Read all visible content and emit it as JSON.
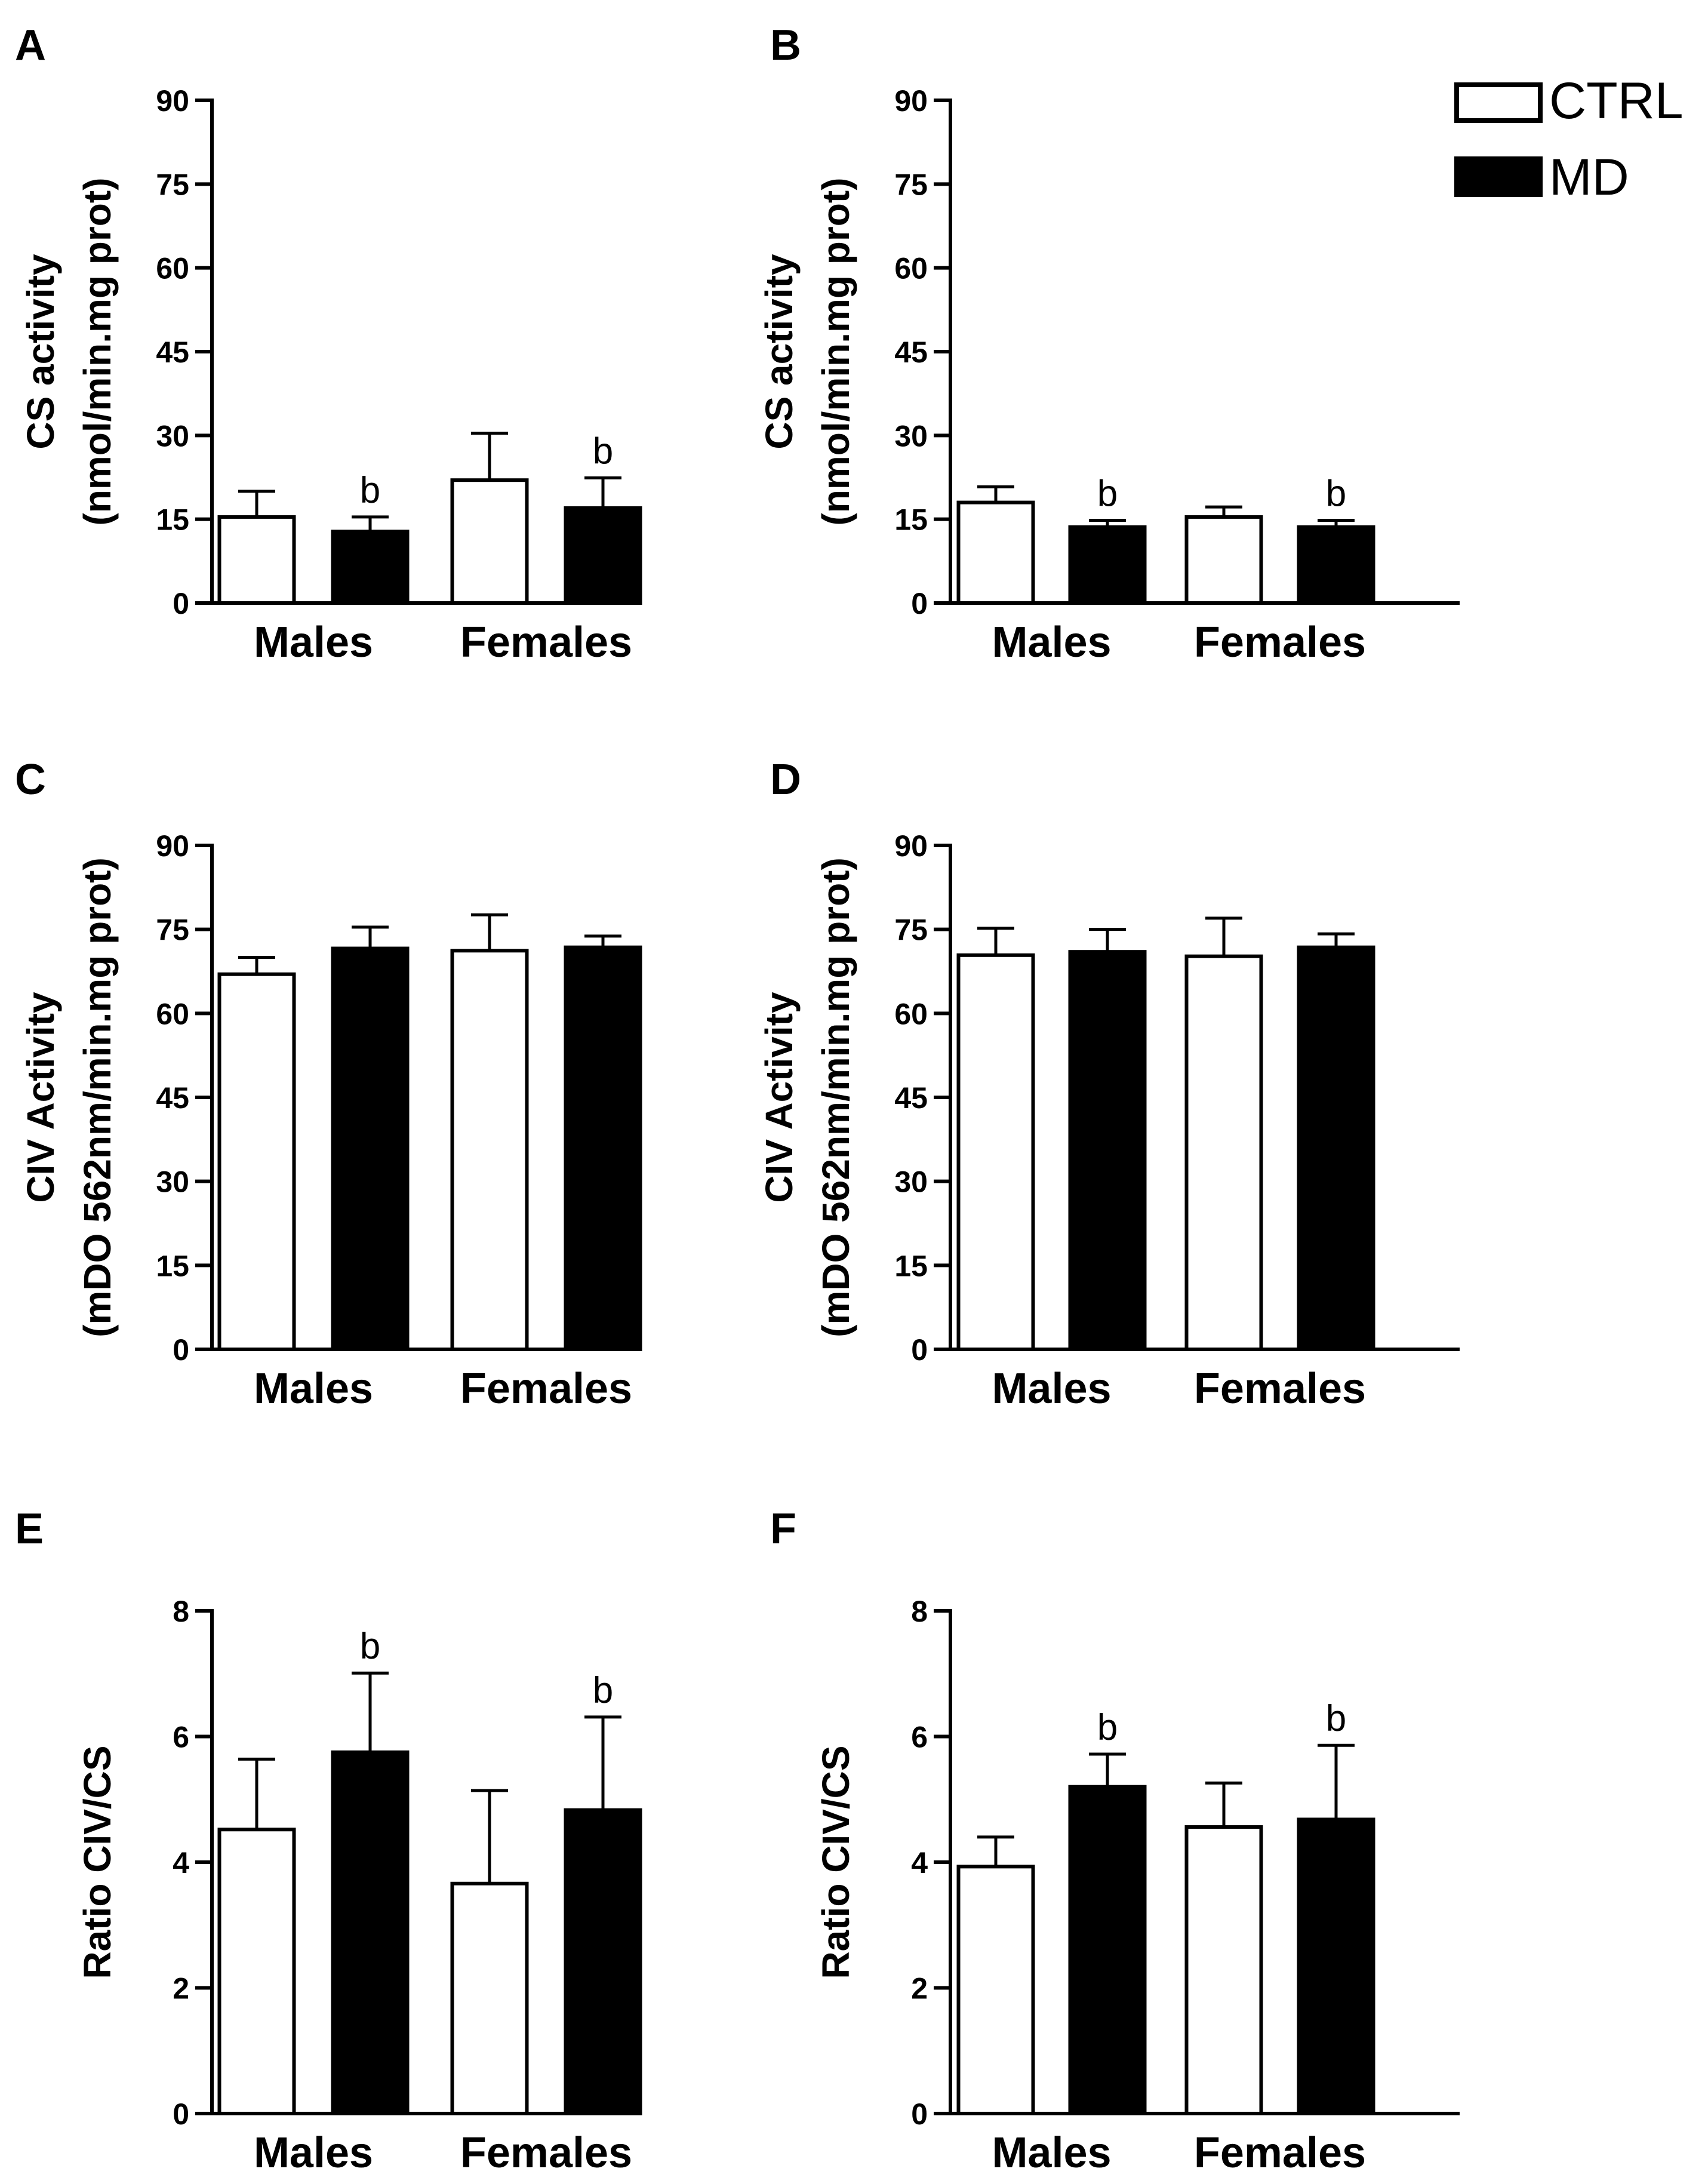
{
  "legend": {
    "items": [
      {
        "label": "CTRL",
        "fill": "#ffffff"
      },
      {
        "label": "MD",
        "fill": "#000000"
      }
    ]
  },
  "colors": {
    "ctrl_fill": "#ffffff",
    "md_fill": "#000000",
    "stroke": "#000000"
  },
  "chart_data": [
    {
      "panel": "A",
      "type": "bar",
      "ylabel_line1": "CS activity",
      "ylabel_line2": "(nmol/min.mg prot)",
      "ylim": [
        0,
        90
      ],
      "yticks": [
        0,
        15,
        30,
        45,
        60,
        75,
        90
      ],
      "categories": [
        "Males",
        "Females"
      ],
      "series": [
        {
          "name": "CTRL",
          "values": [
            15.4,
            22.0
          ],
          "errors": [
            4.6,
            8.4
          ],
          "labels": [
            "",
            ""
          ]
        },
        {
          "name": "MD",
          "values": [
            12.8,
            17.0
          ],
          "errors": [
            2.6,
            5.4
          ],
          "labels": [
            "b",
            "b"
          ]
        }
      ]
    },
    {
      "panel": "B",
      "type": "bar",
      "ylabel_line1": "CS activity",
      "ylabel_line2": "(nmol/min.mg prot)",
      "ylim": [
        0,
        90
      ],
      "yticks": [
        0,
        15,
        30,
        45,
        60,
        75,
        90
      ],
      "categories": [
        "Males",
        "Females"
      ],
      "series": [
        {
          "name": "CTRL",
          "values": [
            18.0,
            15.4
          ],
          "errors": [
            2.8,
            1.8
          ],
          "labels": [
            "",
            ""
          ]
        },
        {
          "name": "MD",
          "values": [
            13.6,
            13.6
          ],
          "errors": [
            1.2,
            1.2
          ],
          "labels": [
            "b",
            "b"
          ]
        }
      ]
    },
    {
      "panel": "C",
      "type": "bar",
      "ylabel_line1": "CIV Activity",
      "ylabel_line2": "(mDO 562nm/min.mg prot)",
      "ylim": [
        0,
        90
      ],
      "yticks": [
        0,
        15,
        30,
        45,
        60,
        75,
        90
      ],
      "categories": [
        "Males",
        "Females"
      ],
      "series": [
        {
          "name": "CTRL",
          "values": [
            67.0,
            71.2
          ],
          "errors": [
            3.0,
            6.4
          ],
          "labels": [
            "",
            ""
          ]
        },
        {
          "name": "MD",
          "values": [
            71.6,
            71.8
          ],
          "errors": [
            3.8,
            2.0
          ],
          "labels": [
            "",
            ""
          ]
        }
      ]
    },
    {
      "panel": "D",
      "type": "bar",
      "ylabel_line1": "CIV Activity",
      "ylabel_line2": "(mDO 562nm/min.mg prot)",
      "ylim": [
        0,
        90
      ],
      "yticks": [
        0,
        15,
        30,
        45,
        60,
        75,
        90
      ],
      "categories": [
        "Males",
        "Females"
      ],
      "series": [
        {
          "name": "CTRL",
          "values": [
            70.4,
            70.2
          ],
          "errors": [
            4.8,
            6.8
          ],
          "labels": [
            "",
            ""
          ]
        },
        {
          "name": "MD",
          "values": [
            71.0,
            71.8
          ],
          "errors": [
            4.0,
            2.4
          ],
          "labels": [
            "",
            ""
          ]
        }
      ]
    },
    {
      "panel": "E",
      "type": "bar",
      "ylabel_line1": "Ratio CIV/CS",
      "ylabel_line2": "",
      "ylim": [
        0,
        8
      ],
      "yticks": [
        0,
        2,
        4,
        6,
        8
      ],
      "categories": [
        "Males",
        "Females"
      ],
      "series": [
        {
          "name": "CTRL",
          "values": [
            4.52,
            3.66
          ],
          "errors": [
            1.12,
            1.48
          ],
          "labels": [
            "",
            ""
          ]
        },
        {
          "name": "MD",
          "values": [
            5.75,
            4.83
          ],
          "errors": [
            1.26,
            1.48
          ],
          "labels": [
            "b",
            "b"
          ]
        }
      ]
    },
    {
      "panel": "F",
      "type": "bar",
      "ylabel_line1": "Ratio CIV/CS",
      "ylabel_line2": "",
      "ylim": [
        0,
        8
      ],
      "yticks": [
        0,
        2,
        4,
        6,
        8
      ],
      "categories": [
        "Males",
        "Females"
      ],
      "series": [
        {
          "name": "CTRL",
          "values": [
            3.93,
            4.56
          ],
          "errors": [
            0.47,
            0.7
          ],
          "labels": [
            "",
            ""
          ]
        },
        {
          "name": "MD",
          "values": [
            5.2,
            4.68
          ],
          "errors": [
            0.52,
            1.18
          ],
          "labels": [
            "b",
            "b"
          ]
        }
      ]
    }
  ]
}
